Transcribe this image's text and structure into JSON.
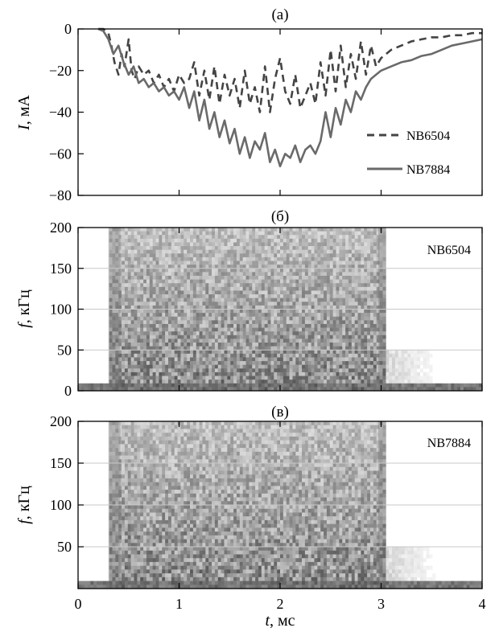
{
  "chart_data": [
    {
      "type": "line",
      "panel_label": "(а)",
      "ylabel_symbol": "I",
      "ylabel_unit": ", мА",
      "ylim": [
        -80,
        0
      ],
      "yticks": [
        "0",
        "−20",
        "−40",
        "−60",
        "−80"
      ],
      "xlim": [
        0,
        4
      ],
      "legend_position": "right",
      "series": [
        {
          "name": "NB6504",
          "style": "dashed",
          "color": "#444444",
          "x": [
            0.2,
            0.25,
            0.3,
            0.33,
            0.36,
            0.4,
            0.43,
            0.46,
            0.5,
            0.53,
            0.56,
            0.6,
            0.65,
            0.7,
            0.75,
            0.8,
            0.85,
            0.9,
            0.95,
            1.0,
            1.05,
            1.1,
            1.15,
            1.2,
            1.25,
            1.3,
            1.35,
            1.4,
            1.45,
            1.5,
            1.55,
            1.6,
            1.65,
            1.7,
            1.75,
            1.8,
            1.85,
            1.9,
            1.95,
            2.0,
            2.05,
            2.1,
            2.15,
            2.2,
            2.25,
            2.3,
            2.35,
            2.4,
            2.45,
            2.5,
            2.55,
            2.6,
            2.65,
            2.7,
            2.75,
            2.8,
            2.85,
            2.9,
            2.95,
            3.0,
            3.1,
            3.2,
            3.3,
            3.4,
            3.5,
            3.6,
            3.7,
            3.8,
            3.9,
            4.0
          ],
          "y": [
            0,
            0,
            -2,
            -8,
            -16,
            -22,
            -12,
            -18,
            -5,
            -20,
            -24,
            -18,
            -22,
            -20,
            -26,
            -22,
            -28,
            -24,
            -30,
            -22,
            -26,
            -24,
            -16,
            -32,
            -20,
            -34,
            -18,
            -36,
            -22,
            -32,
            -24,
            -38,
            -20,
            -36,
            -28,
            -40,
            -18,
            -40,
            -24,
            -14,
            -30,
            -36,
            -22,
            -38,
            -32,
            -26,
            -36,
            -16,
            -32,
            -10,
            -30,
            -8,
            -28,
            -12,
            -24,
            -6,
            -22,
            -8,
            -18,
            -14,
            -10,
            -8,
            -6,
            -5,
            -4,
            -4,
            -3,
            -3,
            -2,
            -2
          ]
        },
        {
          "name": "NB7884",
          "style": "solid",
          "color": "#6a6a6a",
          "x": [
            0.2,
            0.25,
            0.3,
            0.35,
            0.4,
            0.45,
            0.5,
            0.55,
            0.6,
            0.65,
            0.7,
            0.75,
            0.8,
            0.85,
            0.9,
            0.95,
            1.0,
            1.05,
            1.1,
            1.15,
            1.2,
            1.25,
            1.3,
            1.35,
            1.4,
            1.45,
            1.5,
            1.55,
            1.6,
            1.65,
            1.7,
            1.75,
            1.8,
            1.85,
            1.9,
            1.95,
            2.0,
            2.05,
            2.1,
            2.15,
            2.2,
            2.25,
            2.3,
            2.35,
            2.4,
            2.45,
            2.5,
            2.55,
            2.6,
            2.65,
            2.7,
            2.75,
            2.8,
            2.85,
            2.9,
            2.95,
            3.0,
            3.1,
            3.2,
            3.3,
            3.4,
            3.5,
            3.6,
            3.7,
            3.8,
            3.9,
            4.0
          ],
          "y": [
            0,
            -1,
            -5,
            -12,
            -8,
            -16,
            -22,
            -18,
            -26,
            -24,
            -28,
            -26,
            -30,
            -28,
            -32,
            -30,
            -34,
            -28,
            -38,
            -30,
            -44,
            -34,
            -48,
            -40,
            -52,
            -44,
            -55,
            -48,
            -60,
            -52,
            -62,
            -54,
            -58,
            -50,
            -64,
            -58,
            -66,
            -60,
            -62,
            -56,
            -64,
            -58,
            -56,
            -60,
            -54,
            -40,
            -52,
            -38,
            -46,
            -34,
            -40,
            -30,
            -34,
            -28,
            -24,
            -22,
            -20,
            -18,
            -16,
            -15,
            -13,
            -12,
            -10,
            -8,
            -7,
            -6,
            -5
          ]
        }
      ]
    },
    {
      "type": "heatmap",
      "panel_label": "(б)",
      "ylabel_symbol": "f",
      "ylabel_unit": ", кГц",
      "ylim": [
        0,
        200
      ],
      "yticks": [
        "200",
        "150",
        "100",
        "50",
        "0"
      ],
      "xlim": [
        0,
        4
      ],
      "annotation": "NB6504",
      "colormap": "grayscale",
      "active_range_ms": [
        0.3,
        3.05
      ],
      "grid": true
    },
    {
      "type": "heatmap",
      "panel_label": "(в)",
      "ylabel_symbol": "f",
      "ylabel_unit": ", кГц",
      "ylim": [
        0,
        200
      ],
      "yticks": [
        "200",
        "150",
        "100",
        "50"
      ],
      "xlim": [
        0,
        4
      ],
      "xticks": [
        "0",
        "1",
        "2",
        "3",
        "4"
      ],
      "xlabel_symbol": "t",
      "xlabel_unit": ", мс",
      "annotation": "NB7884",
      "colormap": "grayscale",
      "active_range_ms": [
        0.3,
        3.05
      ],
      "grid": true
    }
  ]
}
